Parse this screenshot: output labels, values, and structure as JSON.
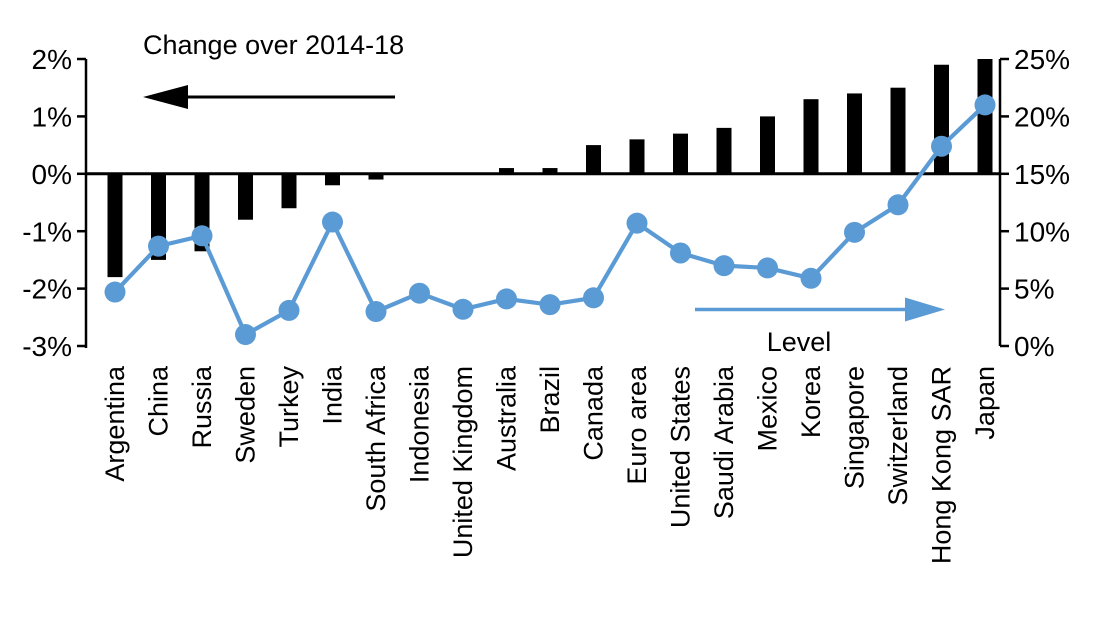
{
  "chart_data": {
    "type": "combo-bar-line",
    "title": "",
    "categories": [
      "Argentina",
      "China",
      "Russia",
      "Sweden",
      "Turkey",
      "India",
      "South Africa",
      "Indonesia",
      "United Kingdom",
      "Australia",
      "Brazil",
      "Canada",
      "Euro area",
      "United States",
      "Saudi Arabia",
      "Mexico",
      "Korea",
      "Singapore",
      "Switzerland",
      "Hong Kong SAR",
      "Japan"
    ],
    "series": [
      {
        "name": "Change over 2014-18",
        "type": "bar",
        "axis": "left",
        "color": "#000000",
        "values": [
          -1.8,
          -1.5,
          -1.35,
          -0.8,
          -0.6,
          -0.2,
          -0.1,
          0.0,
          0.0,
          0.1,
          0.1,
          0.5,
          0.6,
          0.7,
          0.8,
          1.0,
          1.3,
          1.4,
          1.5,
          1.9,
          2.0
        ]
      },
      {
        "name": "Level",
        "type": "line",
        "axis": "right",
        "color": "#5B9BD5",
        "values": [
          4.7,
          8.7,
          9.6,
          1.0,
          3.1,
          10.8,
          3.0,
          4.6,
          3.2,
          4.1,
          3.6,
          4.2,
          10.7,
          8.1,
          7.0,
          6.8,
          5.9,
          9.9,
          12.3,
          17.4,
          21.0
        ]
      }
    ],
    "left_axis": {
      "ticks": [
        "2%",
        "1%",
        "0%",
        "-1%",
        "-2%",
        "-3%"
      ],
      "tick_values": [
        2,
        1,
        0,
        -1,
        -2,
        -3
      ],
      "range": [
        -3,
        2
      ]
    },
    "right_axis": {
      "ticks": [
        "25%",
        "20%",
        "15%",
        "10%",
        "5%",
        "0%"
      ],
      "tick_values": [
        25,
        20,
        15,
        10,
        5,
        0
      ],
      "range": [
        0,
        25
      ]
    },
    "annotations": [
      {
        "id": "change-annotation",
        "text": "Change over 2014-18",
        "arrow": "left",
        "color": "#000000"
      },
      {
        "id": "level-annotation",
        "text": "Level",
        "arrow": "right",
        "color": "#5B9BD5"
      }
    ],
    "grid": false,
    "legend_position": "none",
    "background": "#ffffff"
  }
}
